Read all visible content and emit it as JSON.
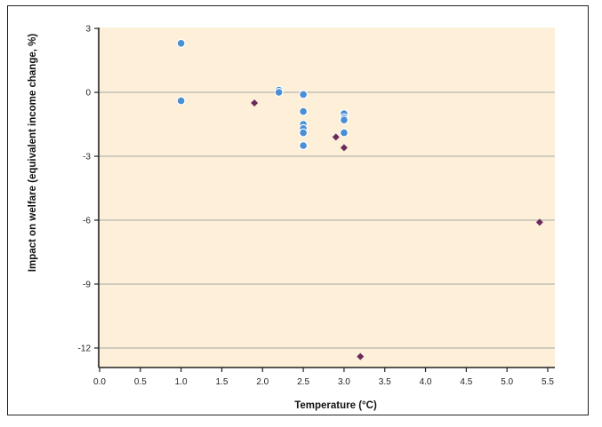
{
  "chart_data": {
    "type": "scatter",
    "title": "",
    "xlabel": "Temperature (°C)",
    "ylabel": "Impact on welfare (equivalent income change, %)",
    "xlim": [
      0,
      5.5
    ],
    "ylim": [
      -13,
      3
    ],
    "x_ticks": [
      0.0,
      0.5,
      1.0,
      1.5,
      2.0,
      2.5,
      3.0,
      3.5,
      4.0,
      4.5,
      5.0,
      5.5
    ],
    "x_tick_labels": [
      "0.0",
      "0.5",
      "1.0",
      "1.5",
      "2.0",
      "2.5",
      "3.0",
      "3.5",
      "4.0",
      "4.5",
      "5.0",
      "5.5"
    ],
    "y_ticks": [
      3,
      0,
      -3,
      -6,
      -9,
      -12
    ],
    "y_tick_labels": [
      "3",
      "0",
      "-3",
      "-6",
      "-9",
      "-12"
    ],
    "grid": "horizontal",
    "background_color": "#fdefd8",
    "series": [
      {
        "marker": "circle",
        "color": "#4a8fd6",
        "points": [
          [
            1.0,
            2.3
          ],
          [
            1.0,
            -0.4
          ],
          [
            2.2,
            0.1
          ],
          [
            2.2,
            0.0
          ],
          [
            2.5,
            -0.1
          ],
          [
            2.5,
            -0.9
          ],
          [
            2.5,
            -1.5
          ],
          [
            2.5,
            -1.7
          ],
          [
            2.5,
            -1.9
          ],
          [
            2.5,
            -2.5
          ],
          [
            3.0,
            -1.0
          ],
          [
            3.0,
            -1.2
          ],
          [
            3.0,
            -1.3
          ],
          [
            3.0,
            -1.9
          ]
        ]
      },
      {
        "marker": "diamond",
        "color": "#6b2a5c",
        "points": [
          [
            1.9,
            -0.5
          ],
          [
            2.9,
            -2.1
          ],
          [
            3.0,
            -2.6
          ],
          [
            3.2,
            -12.4
          ],
          [
            5.4,
            -6.1
          ]
        ]
      }
    ]
  }
}
